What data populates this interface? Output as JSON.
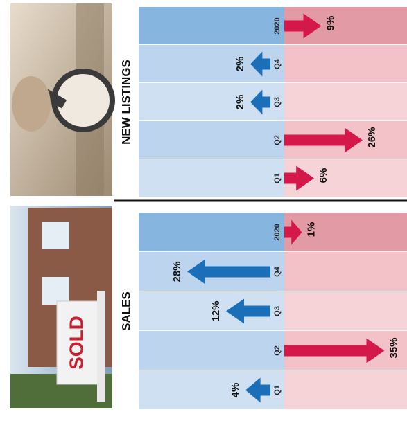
{
  "photo_text": "SOLD",
  "chart_data": [
    {
      "type": "arrow",
      "title": "NEW LISTINGS",
      "categories": [
        "Q1",
        "Q2",
        "Q3",
        "Q4",
        "2020"
      ],
      "values": [
        6,
        26,
        -2,
        -2,
        9
      ],
      "value_labels": [
        "6%",
        "26%",
        "2%",
        "2%",
        "9%"
      ],
      "colors": {
        "up": "#d4184a",
        "down": "#1a6fb8"
      }
    },
    {
      "type": "arrow",
      "title": "SALES",
      "categories": [
        "Q1",
        "Q2",
        "Q3",
        "Q4",
        "2020"
      ],
      "values": [
        -4,
        35,
        -12,
        -28,
        1
      ],
      "value_labels": [
        "4%",
        "35%",
        "12%",
        "28%",
        "1%"
      ],
      "colors": {
        "up": "#d4184a",
        "down": "#1a6fb8"
      }
    }
  ]
}
